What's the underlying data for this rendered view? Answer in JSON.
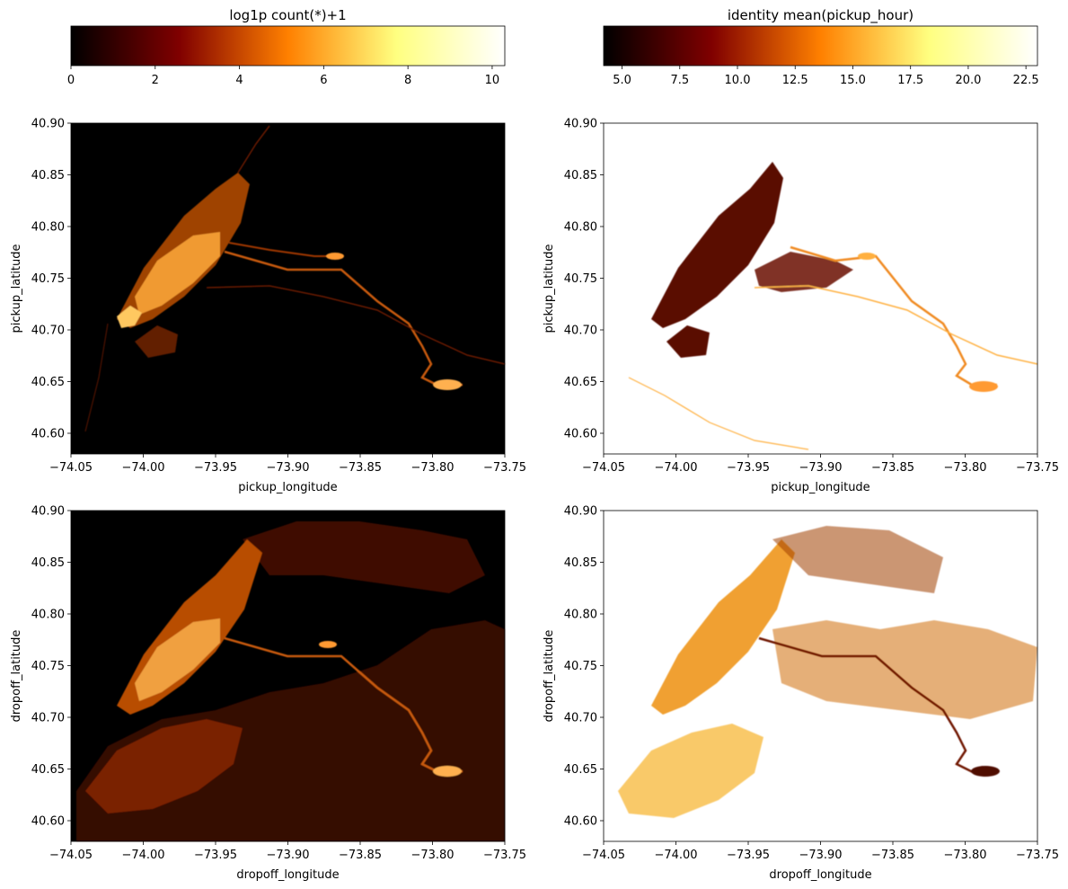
{
  "colors": {
    "colormap": "afmhot",
    "axis_frame": "#000000",
    "background": "#ffffff",
    "empty_bin": "#ffffff"
  },
  "chart_data": [
    {
      "type": "heatmap",
      "title": "",
      "colormap": "afmhot",
      "xlabel": "pickup_longitude",
      "ylabel": "pickup_latitude",
      "xlim": [
        -74.05,
        -73.75
      ],
      "ylim": [
        40.58,
        40.9
      ],
      "xticks": [
        "−74.05",
        "−74.00",
        "−73.95",
        "−73.90",
        "−73.85",
        "−73.80",
        "−73.75"
      ],
      "yticks": [
        "40.60",
        "40.65",
        "40.70",
        "40.75",
        "40.80",
        "40.85",
        "40.90"
      ],
      "colorbar": {
        "label": "log1p count(*)+1",
        "range": [
          0,
          10.3
        ],
        "ticks": [
          "0",
          "2",
          "4",
          "6",
          "8",
          "10"
        ],
        "tick_values": [
          0,
          2,
          4,
          6,
          8,
          10
        ]
      },
      "empty_bins": "black"
    },
    {
      "type": "heatmap",
      "title": "",
      "colormap": "afmhot",
      "xlabel": "pickup_longitude",
      "ylabel": "pickup_latitude",
      "xlim": [
        -74.05,
        -73.75
      ],
      "ylim": [
        40.58,
        40.9
      ],
      "xticks": [
        "−74.05",
        "−74.00",
        "−73.95",
        "−73.90",
        "−73.85",
        "−73.80",
        "−73.75"
      ],
      "yticks": [
        "40.60",
        "40.65",
        "40.70",
        "40.75",
        "40.80",
        "40.85",
        "40.90"
      ],
      "colorbar": {
        "label": "identity mean(pickup_hour)",
        "range": [
          4.2,
          23
        ],
        "ticks": [
          "5.0",
          "7.5",
          "10.0",
          "12.5",
          "15.0",
          "17.5",
          "20.0",
          "22.5"
        ],
        "tick_values": [
          5,
          7.5,
          10,
          12.5,
          15,
          17.5,
          20,
          22.5
        ]
      },
      "empty_bins": "white"
    },
    {
      "type": "heatmap",
      "title": "",
      "colormap": "afmhot",
      "xlabel": "dropoff_longitude",
      "ylabel": "dropoff_latitude",
      "xlim": [
        -74.05,
        -73.75
      ],
      "ylim": [
        40.58,
        40.9
      ],
      "xticks": [
        "−74.05",
        "−74.00",
        "−73.95",
        "−73.90",
        "−73.85",
        "−73.80",
        "−73.75"
      ],
      "yticks": [
        "40.60",
        "40.65",
        "40.70",
        "40.75",
        "40.80",
        "40.85",
        "40.90"
      ],
      "empty_bins": "black"
    },
    {
      "type": "heatmap",
      "title": "",
      "colormap": "afmhot",
      "xlabel": "dropoff_longitude",
      "ylabel": "dropoff_latitude",
      "xlim": [
        -74.05,
        -73.75
      ],
      "ylim": [
        40.58,
        40.9
      ],
      "xticks": [
        "−74.05",
        "−74.00",
        "−73.95",
        "−73.90",
        "−73.85",
        "−73.80",
        "−73.75"
      ],
      "yticks": [
        "40.60",
        "40.65",
        "40.70",
        "40.75",
        "40.80",
        "40.85",
        "40.90"
      ],
      "empty_bins": "white"
    }
  ]
}
